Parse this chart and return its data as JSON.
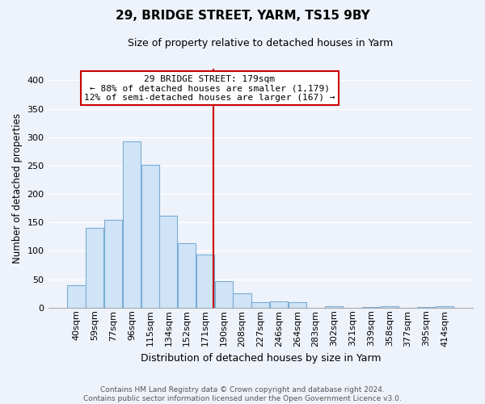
{
  "title": "29, BRIDGE STREET, YARM, TS15 9BY",
  "subtitle": "Size of property relative to detached houses in Yarm",
  "xlabel": "Distribution of detached houses by size in Yarm",
  "ylabel": "Number of detached properties",
  "bar_labels": [
    "40sqm",
    "59sqm",
    "77sqm",
    "96sqm",
    "115sqm",
    "134sqm",
    "152sqm",
    "171sqm",
    "190sqm",
    "208sqm",
    "227sqm",
    "246sqm",
    "264sqm",
    "283sqm",
    "302sqm",
    "321sqm",
    "339sqm",
    "358sqm",
    "377sqm",
    "395sqm",
    "414sqm"
  ],
  "bar_values": [
    40,
    140,
    155,
    293,
    251,
    161,
    113,
    93,
    46,
    25,
    10,
    11,
    9,
    0,
    3,
    0,
    1,
    2,
    0,
    1,
    2
  ],
  "bar_color": "#d0e4f7",
  "bar_edge_color": "#7aadd4",
  "annotation_line_label": "29 BRIDGE STREET: 179sqm",
  "annotation_text1": "← 88% of detached houses are smaller (1,179)",
  "annotation_text2": "12% of semi-detached houses are larger (167) →",
  "annotation_box_facecolor": "#ffffff",
  "annotation_box_edgecolor": "#cc0000",
  "vline_color": "#cc0000",
  "ylim": [
    0,
    420
  ],
  "yticks": [
    0,
    50,
    100,
    150,
    200,
    250,
    300,
    350,
    400
  ],
  "footer1": "Contains HM Land Registry data © Crown copyright and database right 2024.",
  "footer2": "Contains public sector information licensed under the Open Government Licence v3.0.",
  "bg_color": "#eef2fa",
  "grid_color": "#ffffff",
  "title_fontsize": 11,
  "subtitle_fontsize": 9,
  "xlabel_fontsize": 9,
  "ylabel_fontsize": 8.5,
  "tick_fontsize": 8,
  "footer_fontsize": 6.5,
  "annot_fontsize": 8
}
